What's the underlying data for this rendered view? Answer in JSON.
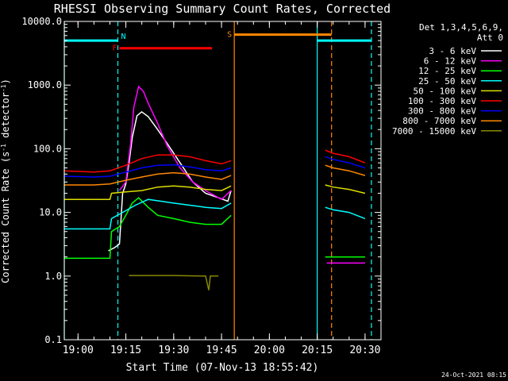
{
  "chart_data": {
    "type": "line",
    "title": "RHESSI Observing Summary Count Rates, Corrected",
    "xlabel": "Start Time (07-Nov-13 18:55:42)",
    "ylabel": "Corrected Count Rate (s⁻¹ detector⁻¹)",
    "ylabel_main": "Corrected Count Rate (s",
    "ylabel_sup1": "-1",
    "ylabel_mid": " detector",
    "ylabel_sup2": "-1",
    "ylabel_end": ")",
    "y_scale": "log",
    "xlim": [
      "18:55:42",
      "20:35:00"
    ],
    "ylim": [
      0.1,
      10000
    ],
    "x_ticks": [
      "19:00",
      "19:15",
      "19:30",
      "19:45",
      "20:00",
      "20:15",
      "20:30"
    ],
    "y_ticks": [
      "0.1",
      "1.0",
      "10.0",
      "100.0",
      "1000.0",
      "10000.0"
    ],
    "legend": {
      "placement": "right",
      "header1": "Det 1,3,4,5,6,9,",
      "header2": "Att 0",
      "entries": [
        {
          "label": "3 - 6 keV",
          "color": "#ffffff"
        },
        {
          "label": "6 - 12 keV",
          "color": "#ff00ff"
        },
        {
          "label": "12 - 25 keV",
          "color": "#00ff00"
        },
        {
          "label": "25 - 50 keV",
          "color": "#00ffff"
        },
        {
          "label": "50 - 100 keV",
          "color": "#dddd00"
        },
        {
          "label": "100 - 300 keV",
          "color": "#ff0000"
        },
        {
          "label": "300 - 800 keV",
          "color": "#0000ff"
        },
        {
          "label": "800 - 7000 keV",
          "color": "#ff8800"
        },
        {
          "label": "7000 - 15000 keV",
          "color": "#888800"
        }
      ]
    },
    "series": [
      {
        "name": "3 - 6 keV",
        "color": "#ffffff",
        "segments": [
          [
            [
              "19:09:30",
              2.5
            ],
            [
              "19:11:30",
              2.8
            ],
            [
              "19:13:00",
              3.2
            ],
            [
              "19:14:00",
              20
            ],
            [
              "19:15:00",
              28
            ],
            [
              "19:16:00",
              60
            ],
            [
              "19:17:00",
              150
            ],
            [
              "19:18:30",
              330
            ],
            [
              "19:20:00",
              380
            ],
            [
              "19:22:00",
              320
            ],
            [
              "19:25:00",
              200
            ],
            [
              "19:28:00",
              120
            ],
            [
              "19:32:00",
              60
            ],
            [
              "19:36:00",
              30
            ],
            [
              "19:40:00",
              20
            ],
            [
              "19:44:00",
              17
            ],
            [
              "19:47:00",
              15
            ],
            [
              "19:48:00",
              22
            ]
          ]
        ]
      },
      {
        "name": "6 - 12 keV",
        "color": "#ff00ff",
        "segments": [
          [
            [
              "19:13:00",
              22
            ],
            [
              "19:15:00",
              30
            ],
            [
              "19:16:30",
              120
            ],
            [
              "19:17:30",
              450
            ],
            [
              "19:19:00",
              950
            ],
            [
              "19:20:30",
              800
            ],
            [
              "19:22:00",
              520
            ],
            [
              "19:25:00",
              250
            ],
            [
              "19:28:00",
              110
            ],
            [
              "19:32:00",
              50
            ],
            [
              "19:36:00",
              30
            ],
            [
              "19:40:00",
              22
            ],
            [
              "19:45:00",
              16
            ],
            [
              "19:48:00",
              22
            ]
          ],
          [
            [
              "20:18:00",
              1.6
            ],
            [
              "20:30:00",
              1.6
            ]
          ]
        ]
      },
      {
        "name": "12 - 25 keV",
        "color": "#00ff00",
        "segments": [
          [
            [
              "18:55:42",
              1.9
            ],
            [
              "19:05:00",
              1.9
            ],
            [
              "19:10:00",
              1.9
            ],
            [
              "19:10:30",
              5
            ],
            [
              "19:13:00",
              6
            ],
            [
              "19:15:00",
              9
            ],
            [
              "19:17:00",
              14
            ],
            [
              "19:19:00",
              17
            ],
            [
              "19:22:00",
              12
            ],
            [
              "19:25:00",
              9
            ],
            [
              "19:30:00",
              8
            ],
            [
              "19:35:00",
              7
            ],
            [
              "19:40:00",
              6.5
            ],
            [
              "19:45:00",
              6.5
            ],
            [
              "19:48:00",
              9
            ]
          ],
          [
            [
              "20:17:30",
              2
            ],
            [
              "20:20:00",
              2
            ],
            [
              "20:25:00",
              2
            ],
            [
              "20:30:00",
              2
            ]
          ]
        ]
      },
      {
        "name": "25 - 50 keV",
        "color": "#00ffff",
        "segments": [
          [
            [
              "18:55:42",
              5.5
            ],
            [
              "19:05:00",
              5.5
            ],
            [
              "19:10:00",
              5.5
            ],
            [
              "19:10:30",
              8
            ],
            [
              "19:14:00",
              10
            ],
            [
              "19:18:00",
              13
            ],
            [
              "19:22:00",
              16
            ],
            [
              "19:26:00",
              15
            ],
            [
              "19:30:00",
              14
            ],
            [
              "19:35:00",
              13
            ],
            [
              "19:40:00",
              12
            ],
            [
              "19:45:00",
              11.5
            ],
            [
              "19:48:00",
              14
            ]
          ],
          [
            [
              "20:17:30",
              12
            ],
            [
              "20:20:00",
              11
            ],
            [
              "20:25:00",
              10
            ],
            [
              "20:30:00",
              8
            ]
          ]
        ]
      },
      {
        "name": "50 - 100 keV",
        "color": "#dddd00",
        "segments": [
          [
            [
              "18:55:42",
              16
            ],
            [
              "19:05:00",
              16
            ],
            [
              "19:10:00",
              16
            ],
            [
              "19:10:30",
              20
            ],
            [
              "19:15:00",
              21
            ],
            [
              "19:20:00",
              22
            ],
            [
              "19:25:00",
              25
            ],
            [
              "19:30:00",
              26
            ],
            [
              "19:35:00",
              25
            ],
            [
              "19:40:00",
              23
            ],
            [
              "19:45:00",
              22
            ],
            [
              "19:48:00",
              26
            ]
          ],
          [
            [
              "20:17:30",
              27
            ],
            [
              "20:20:00",
              25
            ],
            [
              "20:25:00",
              23
            ],
            [
              "20:30:00",
              20
            ]
          ]
        ]
      },
      {
        "name": "100 - 300 keV",
        "color": "#ff0000",
        "segments": [
          [
            [
              "18:55:42",
              45
            ],
            [
              "19:05:00",
              43
            ],
            [
              "19:10:00",
              45
            ],
            [
              "19:15:00",
              55
            ],
            [
              "19:20:00",
              70
            ],
            [
              "19:25:00",
              80
            ],
            [
              "19:30:00",
              80
            ],
            [
              "19:35:00",
              75
            ],
            [
              "19:40:00",
              65
            ],
            [
              "19:45:00",
              58
            ],
            [
              "19:48:00",
              65
            ]
          ],
          [
            [
              "20:17:30",
              95
            ],
            [
              "20:20:00",
              85
            ],
            [
              "20:25:00",
              75
            ],
            [
              "20:30:00",
              60
            ]
          ]
        ]
      },
      {
        "name": "300 - 800 keV",
        "color": "#0000ff",
        "segments": [
          [
            [
              "18:55:42",
              37
            ],
            [
              "19:05:00",
              36
            ],
            [
              "19:10:00",
              37
            ],
            [
              "19:15:00",
              43
            ],
            [
              "19:20:00",
              50
            ],
            [
              "19:25:00",
              55
            ],
            [
              "19:30:00",
              56
            ],
            [
              "19:35:00",
              52
            ],
            [
              "19:40:00",
              47
            ],
            [
              "19:45:00",
              45
            ],
            [
              "19:48:00",
              50
            ]
          ],
          [
            [
              "20:17:30",
              75
            ],
            [
              "20:20:00",
              68
            ],
            [
              "20:25:00",
              60
            ],
            [
              "20:30:00",
              50
            ]
          ]
        ]
      },
      {
        "name": "800 - 7000 keV",
        "color": "#ff8800",
        "segments": [
          [
            [
              "18:55:42",
              27
            ],
            [
              "19:05:00",
              27
            ],
            [
              "19:10:00",
              28
            ],
            [
              "19:15:00",
              32
            ],
            [
              "19:20:00",
              36
            ],
            [
              "19:25:00",
              40
            ],
            [
              "19:30:00",
              42
            ],
            [
              "19:35:00",
              40
            ],
            [
              "19:40:00",
              36
            ],
            [
              "19:45:00",
              33
            ],
            [
              "19:48:00",
              38
            ]
          ],
          [
            [
              "20:17:30",
              55
            ],
            [
              "20:20:00",
              50
            ],
            [
              "20:25:00",
              45
            ],
            [
              "20:30:00",
              38
            ]
          ]
        ]
      },
      {
        "name": "7000 - 15000 keV",
        "color": "#888800",
        "segments": [
          [
            [
              "19:16:00",
              1.02
            ],
            [
              "19:30:00",
              1.02
            ],
            [
              "19:40:00",
              1.0
            ],
            [
              "19:41:00",
              0.6
            ],
            [
              "19:41:30",
              1.0
            ],
            [
              "19:44:00",
              1.0
            ]
          ]
        ]
      }
    ],
    "state_markers": [
      {
        "letter": "N",
        "color": "#00ffff",
        "start": "19:12:30",
        "value": 5000
      },
      {
        "letter": "F",
        "color": "#ff0000",
        "start": "19:13:00",
        "end": "19:42:00",
        "value": 3800
      },
      {
        "letter": "S",
        "color": "#ff8800",
        "start": "19:49:00",
        "end": "20:19:30",
        "value": 6200
      }
    ],
    "state_bars": [
      {
        "color": "#00ffff",
        "start": "18:55:42",
        "end": "19:12:30",
        "value": 5000
      },
      {
        "color": "#00ffff",
        "start": "20:15:00",
        "end": "20:32:00",
        "value": 5000
      }
    ],
    "vlines": [
      {
        "time": "18:55:42",
        "color": "#00ffff",
        "style": "solid"
      },
      {
        "time": "19:12:30",
        "color": "#00ffff",
        "style": "dashed"
      },
      {
        "time": "19:49:00",
        "color": "#ff8800",
        "style": "solid"
      },
      {
        "time": "20:15:00",
        "color": "#00ffff",
        "style": "solid"
      },
      {
        "time": "20:19:30",
        "color": "#ff8800",
        "style": "dashed"
      },
      {
        "time": "20:32:00",
        "color": "#00ffff",
        "style": "dashed"
      }
    ]
  },
  "footer": {
    "timestamp": "24-Oct-2021 08:15"
  }
}
